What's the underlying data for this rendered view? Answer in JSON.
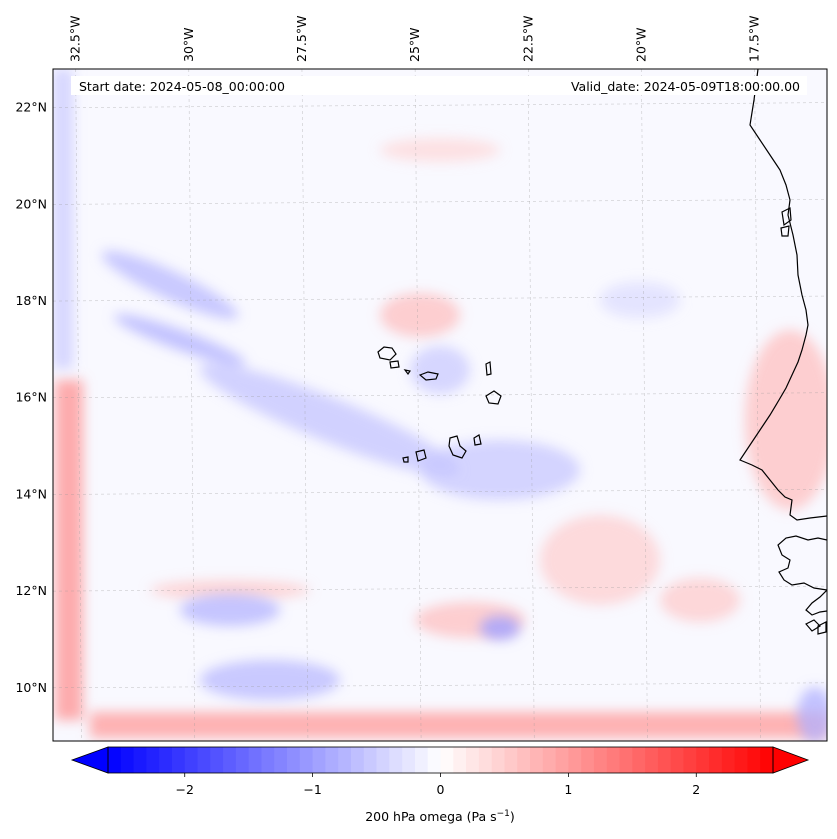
{
  "header": {
    "start_date": "Start date: 2024-05-08_00:00:00",
    "valid_date": "Valid_date: 2024-05-09T18:00:00.00"
  },
  "map": {
    "extent": {
      "lon_min": -33.0,
      "lon_max": -15.9,
      "lat_min": 8.9,
      "lat_max": 22.8
    },
    "lon_ticks": [
      {
        "value": -32.5,
        "label": "32.5°W"
      },
      {
        "value": -30.0,
        "label": "30°W"
      },
      {
        "value": -27.5,
        "label": "27.5°W"
      },
      {
        "value": -25.0,
        "label": "25°W"
      },
      {
        "value": -22.5,
        "label": "22.5°W"
      },
      {
        "value": -20.0,
        "label": "20°W"
      },
      {
        "value": -17.5,
        "label": "17.5°W"
      }
    ],
    "lat_ticks": [
      {
        "value": 22,
        "label": "22°N"
      },
      {
        "value": 20,
        "label": "20°N"
      },
      {
        "value": 18,
        "label": "18°N"
      },
      {
        "value": 16,
        "label": "16°N"
      },
      {
        "value": 14,
        "label": "14°N"
      },
      {
        "value": 12,
        "label": "12°N"
      },
      {
        "value": 10,
        "label": "10°N"
      }
    ],
    "gridlines": true
  },
  "colorbar": {
    "label": "200 hPa omega (Pa s",
    "label_sup": "−1",
    "label_end": ")",
    "vmin": -2.6,
    "vmax": 2.6,
    "ticks": [
      {
        "value": -2,
        "label": "−2"
      },
      {
        "value": -1,
        "label": "−1"
      },
      {
        "value": 0,
        "label": "0"
      },
      {
        "value": 1,
        "label": "1"
      },
      {
        "value": 2,
        "label": "2"
      }
    ],
    "colors": {
      "negative": "#0000ff",
      "zero": "#ffffff",
      "positive": "#ff0000"
    }
  }
}
